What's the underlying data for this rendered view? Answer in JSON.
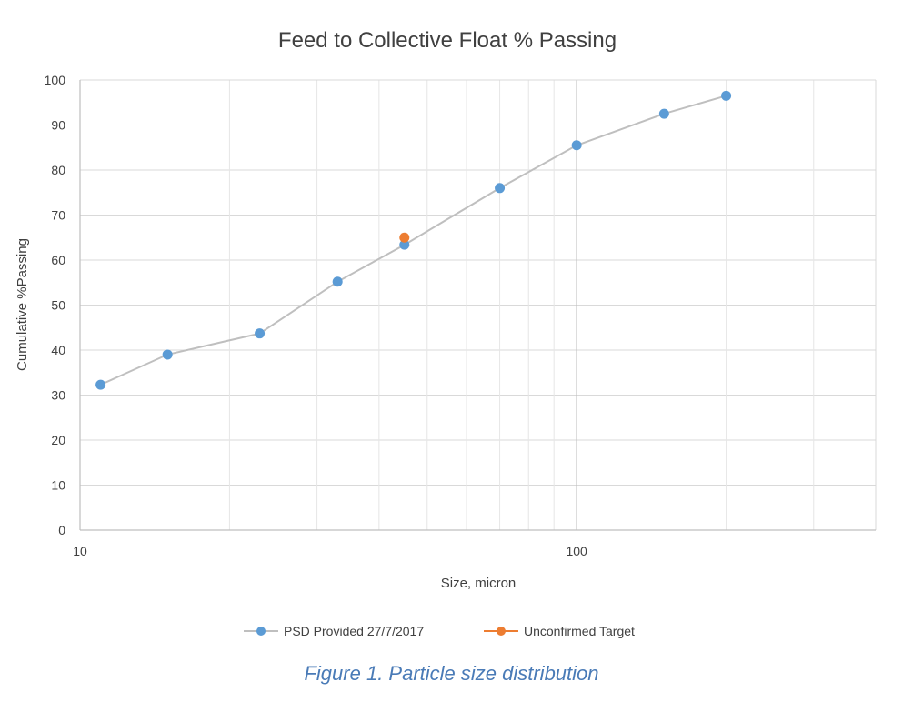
{
  "caption": "Figure 1. Particle size distribution",
  "chart_data": {
    "type": "scatter",
    "title": "Feed to Collective Float % Passing",
    "xlabel": "Size, micron",
    "ylabel": "Cumulative %Passing",
    "xscale": "log",
    "xlim": [
      10,
      400
    ],
    "ylim": [
      0,
      100
    ],
    "x_tick_labels": [
      "10",
      "100"
    ],
    "y_tick_labels": [
      "0",
      "10",
      "20",
      "30",
      "40",
      "50",
      "60",
      "70",
      "80",
      "90",
      "100"
    ],
    "grid": true,
    "legend_position": "bottom",
    "series": [
      {
        "name": "PSD Provided 27/7/2017",
        "color": "#5b9bd5",
        "line_color": "#bfbfbf",
        "lines": true,
        "x": [
          11,
          15,
          23,
          33,
          45,
          70,
          100,
          150,
          200
        ],
        "y": [
          32.3,
          39,
          43.7,
          55.2,
          63.4,
          76,
          85.5,
          92.5,
          96.5
        ]
      },
      {
        "name": "Unconfirmed Target",
        "color": "#ed7d31",
        "line_color": "#ed7d31",
        "lines": false,
        "x": [
          45
        ],
        "y": [
          65
        ]
      }
    ]
  }
}
